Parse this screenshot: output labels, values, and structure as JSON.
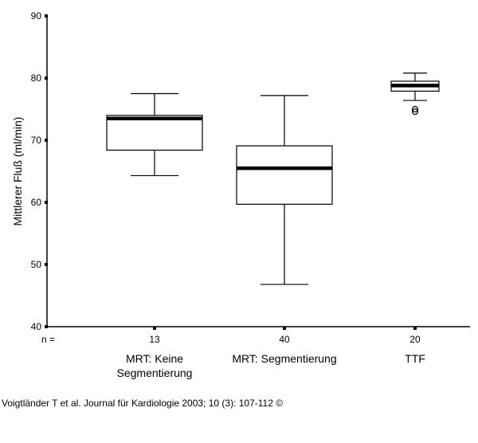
{
  "chart_data": {
    "type": "box",
    "ylabel": "Mittlerer Fluß (ml/min)",
    "ylim": [
      40,
      90
    ],
    "yticks": [
      40,
      50,
      60,
      70,
      80,
      90
    ],
    "n_label": "n =",
    "groups": [
      {
        "label_lines": [
          "MRT: Keine",
          "Segmentierung"
        ],
        "n": "13",
        "min": 64.3,
        "q1": 68.4,
        "median": 73.5,
        "q3": 74.0,
        "max": 77.5,
        "outliers": []
      },
      {
        "label_lines": [
          "MRT: Segmentierung"
        ],
        "n": "40",
        "min": 46.8,
        "q1": 59.7,
        "median": 65.5,
        "q3": 69.1,
        "max": 77.2,
        "outliers": []
      },
      {
        "label_lines": [
          "TTF"
        ],
        "n": "20",
        "min": 76.4,
        "q1": 77.9,
        "median": 78.8,
        "q3": 79.5,
        "max": 80.8,
        "outliers": [
          74.6,
          75.0
        ]
      }
    ]
  },
  "caption": "Voigtländer T et al. Journal für Kardiologie 2003; 10 (3): 107-112 ©"
}
